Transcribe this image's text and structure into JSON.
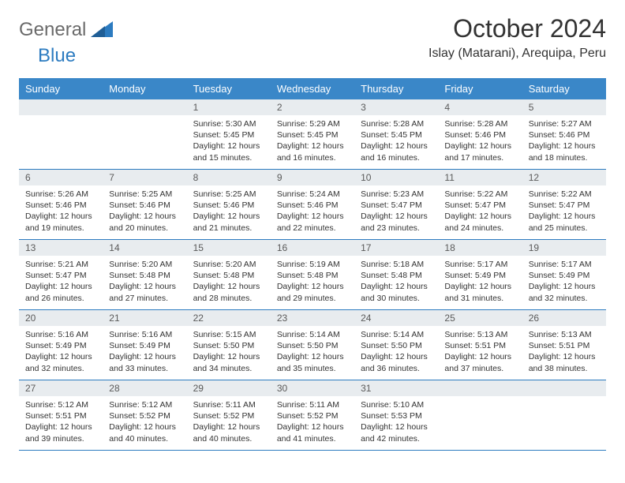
{
  "logo": {
    "general": "General",
    "blue": "Blue"
  },
  "title": "October 2024",
  "subtitle": "Islay (Matarani), Arequipa, Peru",
  "colors": {
    "header_bg": "#3a87c8",
    "header_fg": "#ffffff",
    "daynum_bg": "#e8ecef",
    "rule": "#2c7bc0",
    "logo_gray": "#6a6a6a",
    "logo_blue": "#2c7bc0",
    "text": "#333333"
  },
  "weekdays": [
    "Sunday",
    "Monday",
    "Tuesday",
    "Wednesday",
    "Thursday",
    "Friday",
    "Saturday"
  ],
  "weeks": [
    [
      {
        "empty": true
      },
      {
        "empty": true
      },
      {
        "num": "1",
        "sunrise": "Sunrise: 5:30 AM",
        "sunset": "Sunset: 5:45 PM",
        "day1": "Daylight: 12 hours",
        "day2": "and 15 minutes."
      },
      {
        "num": "2",
        "sunrise": "Sunrise: 5:29 AM",
        "sunset": "Sunset: 5:45 PM",
        "day1": "Daylight: 12 hours",
        "day2": "and 16 minutes."
      },
      {
        "num": "3",
        "sunrise": "Sunrise: 5:28 AM",
        "sunset": "Sunset: 5:45 PM",
        "day1": "Daylight: 12 hours",
        "day2": "and 16 minutes."
      },
      {
        "num": "4",
        "sunrise": "Sunrise: 5:28 AM",
        "sunset": "Sunset: 5:46 PM",
        "day1": "Daylight: 12 hours",
        "day2": "and 17 minutes."
      },
      {
        "num": "5",
        "sunrise": "Sunrise: 5:27 AM",
        "sunset": "Sunset: 5:46 PM",
        "day1": "Daylight: 12 hours",
        "day2": "and 18 minutes."
      }
    ],
    [
      {
        "num": "6",
        "sunrise": "Sunrise: 5:26 AM",
        "sunset": "Sunset: 5:46 PM",
        "day1": "Daylight: 12 hours",
        "day2": "and 19 minutes."
      },
      {
        "num": "7",
        "sunrise": "Sunrise: 5:25 AM",
        "sunset": "Sunset: 5:46 PM",
        "day1": "Daylight: 12 hours",
        "day2": "and 20 minutes."
      },
      {
        "num": "8",
        "sunrise": "Sunrise: 5:25 AM",
        "sunset": "Sunset: 5:46 PM",
        "day1": "Daylight: 12 hours",
        "day2": "and 21 minutes."
      },
      {
        "num": "9",
        "sunrise": "Sunrise: 5:24 AM",
        "sunset": "Sunset: 5:46 PM",
        "day1": "Daylight: 12 hours",
        "day2": "and 22 minutes."
      },
      {
        "num": "10",
        "sunrise": "Sunrise: 5:23 AM",
        "sunset": "Sunset: 5:47 PM",
        "day1": "Daylight: 12 hours",
        "day2": "and 23 minutes."
      },
      {
        "num": "11",
        "sunrise": "Sunrise: 5:22 AM",
        "sunset": "Sunset: 5:47 PM",
        "day1": "Daylight: 12 hours",
        "day2": "and 24 minutes."
      },
      {
        "num": "12",
        "sunrise": "Sunrise: 5:22 AM",
        "sunset": "Sunset: 5:47 PM",
        "day1": "Daylight: 12 hours",
        "day2": "and 25 minutes."
      }
    ],
    [
      {
        "num": "13",
        "sunrise": "Sunrise: 5:21 AM",
        "sunset": "Sunset: 5:47 PM",
        "day1": "Daylight: 12 hours",
        "day2": "and 26 minutes."
      },
      {
        "num": "14",
        "sunrise": "Sunrise: 5:20 AM",
        "sunset": "Sunset: 5:48 PM",
        "day1": "Daylight: 12 hours",
        "day2": "and 27 minutes."
      },
      {
        "num": "15",
        "sunrise": "Sunrise: 5:20 AM",
        "sunset": "Sunset: 5:48 PM",
        "day1": "Daylight: 12 hours",
        "day2": "and 28 minutes."
      },
      {
        "num": "16",
        "sunrise": "Sunrise: 5:19 AM",
        "sunset": "Sunset: 5:48 PM",
        "day1": "Daylight: 12 hours",
        "day2": "and 29 minutes."
      },
      {
        "num": "17",
        "sunrise": "Sunrise: 5:18 AM",
        "sunset": "Sunset: 5:48 PM",
        "day1": "Daylight: 12 hours",
        "day2": "and 30 minutes."
      },
      {
        "num": "18",
        "sunrise": "Sunrise: 5:17 AM",
        "sunset": "Sunset: 5:49 PM",
        "day1": "Daylight: 12 hours",
        "day2": "and 31 minutes."
      },
      {
        "num": "19",
        "sunrise": "Sunrise: 5:17 AM",
        "sunset": "Sunset: 5:49 PM",
        "day1": "Daylight: 12 hours",
        "day2": "and 32 minutes."
      }
    ],
    [
      {
        "num": "20",
        "sunrise": "Sunrise: 5:16 AM",
        "sunset": "Sunset: 5:49 PM",
        "day1": "Daylight: 12 hours",
        "day2": "and 32 minutes."
      },
      {
        "num": "21",
        "sunrise": "Sunrise: 5:16 AM",
        "sunset": "Sunset: 5:49 PM",
        "day1": "Daylight: 12 hours",
        "day2": "and 33 minutes."
      },
      {
        "num": "22",
        "sunrise": "Sunrise: 5:15 AM",
        "sunset": "Sunset: 5:50 PM",
        "day1": "Daylight: 12 hours",
        "day2": "and 34 minutes."
      },
      {
        "num": "23",
        "sunrise": "Sunrise: 5:14 AM",
        "sunset": "Sunset: 5:50 PM",
        "day1": "Daylight: 12 hours",
        "day2": "and 35 minutes."
      },
      {
        "num": "24",
        "sunrise": "Sunrise: 5:14 AM",
        "sunset": "Sunset: 5:50 PM",
        "day1": "Daylight: 12 hours",
        "day2": "and 36 minutes."
      },
      {
        "num": "25",
        "sunrise": "Sunrise: 5:13 AM",
        "sunset": "Sunset: 5:51 PM",
        "day1": "Daylight: 12 hours",
        "day2": "and 37 minutes."
      },
      {
        "num": "26",
        "sunrise": "Sunrise: 5:13 AM",
        "sunset": "Sunset: 5:51 PM",
        "day1": "Daylight: 12 hours",
        "day2": "and 38 minutes."
      }
    ],
    [
      {
        "num": "27",
        "sunrise": "Sunrise: 5:12 AM",
        "sunset": "Sunset: 5:51 PM",
        "day1": "Daylight: 12 hours",
        "day2": "and 39 minutes."
      },
      {
        "num": "28",
        "sunrise": "Sunrise: 5:12 AM",
        "sunset": "Sunset: 5:52 PM",
        "day1": "Daylight: 12 hours",
        "day2": "and 40 minutes."
      },
      {
        "num": "29",
        "sunrise": "Sunrise: 5:11 AM",
        "sunset": "Sunset: 5:52 PM",
        "day1": "Daylight: 12 hours",
        "day2": "and 40 minutes."
      },
      {
        "num": "30",
        "sunrise": "Sunrise: 5:11 AM",
        "sunset": "Sunset: 5:52 PM",
        "day1": "Daylight: 12 hours",
        "day2": "and 41 minutes."
      },
      {
        "num": "31",
        "sunrise": "Sunrise: 5:10 AM",
        "sunset": "Sunset: 5:53 PM",
        "day1": "Daylight: 12 hours",
        "day2": "and 42 minutes."
      },
      {
        "empty": true
      },
      {
        "empty": true
      }
    ]
  ]
}
